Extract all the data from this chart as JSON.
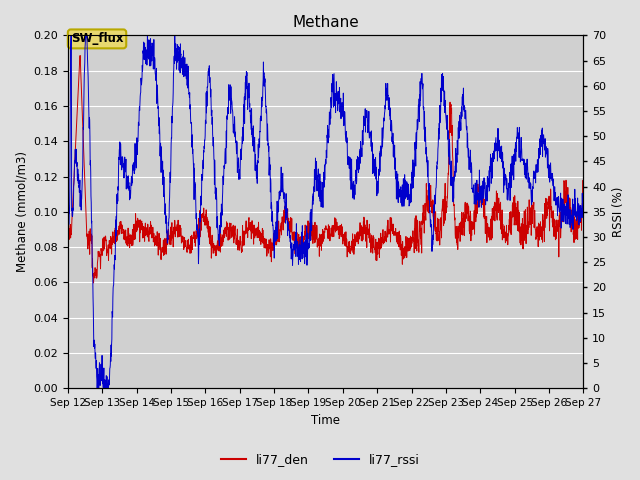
{
  "title": "Methane",
  "xlabel": "Time",
  "ylabel_left": "Methane (mmol/m3)",
  "ylabel_right": "RSSI (%)",
  "xlim_start": 12,
  "xlim_end": 27,
  "ylim_left": [
    0.0,
    0.2
  ],
  "ylim_right": [
    0,
    70
  ],
  "yticks_left": [
    0.0,
    0.02,
    0.04,
    0.06,
    0.08,
    0.1,
    0.12,
    0.14,
    0.16,
    0.18,
    0.2
  ],
  "yticks_right": [
    0,
    5,
    10,
    15,
    20,
    25,
    30,
    35,
    40,
    45,
    50,
    55,
    60,
    65,
    70
  ],
  "xtick_labels": [
    "Sep 12",
    "Sep 13",
    "Sep 14",
    "Sep 15",
    "Sep 16",
    "Sep 17",
    "Sep 18",
    "Sep 19",
    "Sep 20",
    "Sep 21",
    "Sep 22",
    "Sep 23",
    "Sep 24",
    "Sep 25",
    "Sep 26",
    "Sep 27"
  ],
  "color_den": "#cc0000",
  "color_rssi": "#0000cc",
  "background_color": "#e0e0e0",
  "plot_bg_color": "#d0d0d0",
  "legend_label_den": "li77_den",
  "legend_label_rssi": "li77_rssi",
  "annotation_text": "SW_flux",
  "annotation_bg": "#e8d870",
  "annotation_border": "#b8a800"
}
